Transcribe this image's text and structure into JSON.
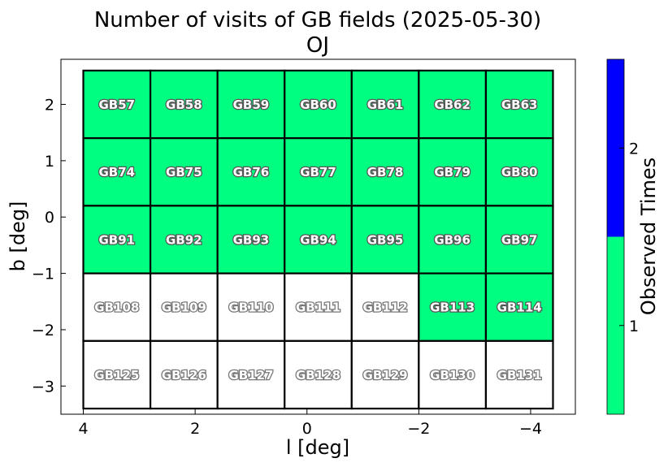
{
  "chart_data": {
    "type": "heatmap",
    "title": "Number of visits of GB fields (2025-05-30)",
    "subtitle": "OJ",
    "xlabel": "l [deg]",
    "ylabel": "b [deg]",
    "xlim": [
      4.4,
      -4.8
    ],
    "ylim": [
      -3.5,
      2.8
    ],
    "x_ticks": [
      4,
      2,
      0,
      -2,
      -4
    ],
    "x_tick_labels": [
      "4",
      "2",
      "0",
      "−2",
      "−4"
    ],
    "y_ticks": [
      2,
      1,
      0,
      -1,
      -2,
      -3
    ],
    "y_tick_labels": [
      "2",
      "1",
      "0",
      "−1",
      "−2",
      "−3"
    ],
    "colorbar": {
      "label": "Observed Times",
      "ticks": [
        1,
        2
      ],
      "tick_labels": [
        "1",
        "2"
      ],
      "range": [
        0.5,
        2.5
      ],
      "levels": [
        {
          "value": 1,
          "color": "#00ff80"
        },
        {
          "value": 2,
          "color": "#0000ff"
        }
      ]
    },
    "unobserved_color": "#ffffff",
    "grid": false,
    "columns_l": [
      4.0,
      2.8,
      1.6,
      0.4,
      -0.8,
      -2.0,
      -3.2,
      -4.4
    ],
    "rows_b": [
      2.6,
      1.4,
      0.2,
      -1.0,
      -2.2,
      -3.4
    ],
    "fields": [
      [
        {
          "name": "GB57",
          "visits": 1
        },
        {
          "name": "GB58",
          "visits": 1
        },
        {
          "name": "GB59",
          "visits": 1
        },
        {
          "name": "GB60",
          "visits": 1
        },
        {
          "name": "GB61",
          "visits": 1
        },
        {
          "name": "GB62",
          "visits": 1
        },
        {
          "name": "GB63",
          "visits": 1
        }
      ],
      [
        {
          "name": "GB74",
          "visits": 1
        },
        {
          "name": "GB75",
          "visits": 1
        },
        {
          "name": "GB76",
          "visits": 1
        },
        {
          "name": "GB77",
          "visits": 1
        },
        {
          "name": "GB78",
          "visits": 1
        },
        {
          "name": "GB79",
          "visits": 1
        },
        {
          "name": "GB80",
          "visits": 1
        }
      ],
      [
        {
          "name": "GB91",
          "visits": 1
        },
        {
          "name": "GB92",
          "visits": 1
        },
        {
          "name": "GB93",
          "visits": 1
        },
        {
          "name": "GB94",
          "visits": 1
        },
        {
          "name": "GB95",
          "visits": 1
        },
        {
          "name": "GB96",
          "visits": 1
        },
        {
          "name": "GB97",
          "visits": 1
        }
      ],
      [
        {
          "name": "GB108",
          "visits": 0
        },
        {
          "name": "GB109",
          "visits": 0
        },
        {
          "name": "GB110",
          "visits": 0
        },
        {
          "name": "GB111",
          "visits": 0
        },
        {
          "name": "GB112",
          "visits": 0
        },
        {
          "name": "GB113",
          "visits": 1
        },
        {
          "name": "GB114",
          "visits": 1
        }
      ],
      [
        {
          "name": "GB125",
          "visits": 0
        },
        {
          "name": "GB126",
          "visits": 0
        },
        {
          "name": "GB127",
          "visits": 0
        },
        {
          "name": "GB128",
          "visits": 0
        },
        {
          "name": "GB129",
          "visits": 0
        },
        {
          "name": "GB130",
          "visits": 0
        },
        {
          "name": "GB131",
          "visits": 0
        }
      ]
    ]
  }
}
